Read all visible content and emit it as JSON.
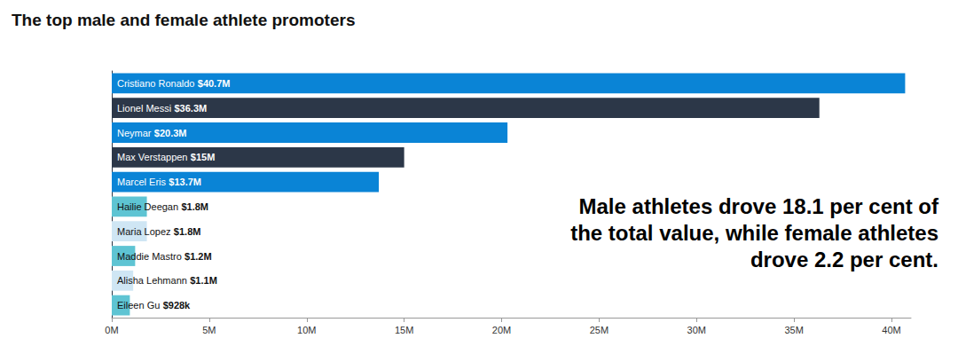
{
  "chart_data": {
    "type": "bar",
    "orientation": "horizontal",
    "title": "The top male and female athlete promoters",
    "annotation": "Male athletes drove 18.1 per cent of the total value, while female athletes drove 2.2 per cent.",
    "categories": [
      "Cristiano Ronaldo",
      "Lionel Messi",
      "Neymar",
      "Max Verstappen",
      "Marcel Eris",
      "Hailie Deegan",
      "Maria Lopez",
      "Maddie Mastro",
      "Alisha Lehmann",
      "Eileen Gu"
    ],
    "values": [
      40.7,
      36.3,
      20.3,
      15,
      13.7,
      1.8,
      1.8,
      1.2,
      1.1,
      0.928
    ],
    "value_labels": [
      "$40.7M",
      "$36.3M",
      "$20.3M",
      "$15M",
      "$13.7M",
      "$1.8M",
      "$1.8M",
      "$1.2M",
      "$1.1M",
      "$928k"
    ],
    "colors": [
      "#0a84d6",
      "#2c3748",
      "#0a84d6",
      "#2c3748",
      "#0a84d6",
      "#5ec4d3",
      "#cfe6f4",
      "#5ec4d3",
      "#cfe6f4",
      "#5ec4d3"
    ],
    "data_labels": true,
    "xlim": [
      0,
      41
    ],
    "xticks": [
      {
        "value": 0,
        "label": "0M"
      },
      {
        "value": 5,
        "label": "5M"
      },
      {
        "value": 10,
        "label": "10M"
      },
      {
        "value": 15,
        "label": "15M"
      },
      {
        "value": 20,
        "label": "20M"
      },
      {
        "value": 25,
        "label": "25M"
      },
      {
        "value": 30,
        "label": "30M"
      },
      {
        "value": 35,
        "label": "35M"
      },
      {
        "value": 40,
        "label": "40M"
      }
    ],
    "grid": false,
    "tick_labels": "x"
  }
}
